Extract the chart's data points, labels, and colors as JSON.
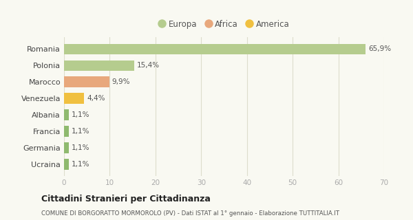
{
  "categories": [
    "Romania",
    "Polonia",
    "Marocco",
    "Venezuela",
    "Albania",
    "Francia",
    "Germania",
    "Ucraina"
  ],
  "values": [
    65.9,
    15.4,
    9.9,
    4.4,
    1.1,
    1.1,
    1.1,
    1.1
  ],
  "labels": [
    "65,9%",
    "15,4%",
    "9,9%",
    "4,4%",
    "1,1%",
    "1,1%",
    "1,1%",
    "1,1%"
  ],
  "colors": [
    "#b5cc8e",
    "#b5cc8e",
    "#e8a87c",
    "#f0c040",
    "#8fba6e",
    "#8fba6e",
    "#8fba6e",
    "#8fba6e"
  ],
  "legend": [
    {
      "label": "Europa",
      "color": "#b5cc8e"
    },
    {
      "label": "Africa",
      "color": "#e8a87c"
    },
    {
      "label": "America",
      "color": "#f0c040"
    }
  ],
  "xlim": [
    0,
    70
  ],
  "xticks": [
    0,
    10,
    20,
    30,
    40,
    50,
    60,
    70
  ],
  "title": "Cittadini Stranieri per Cittadinanza",
  "subtitle": "COMUNE DI BORGORATTO MORMOROLO (PV) - Dati ISTAT al 1° gennaio - Elaborazione TUTTITALIA.IT",
  "background_color": "#f9f9f2",
  "grid_color": "#ddddcc"
}
